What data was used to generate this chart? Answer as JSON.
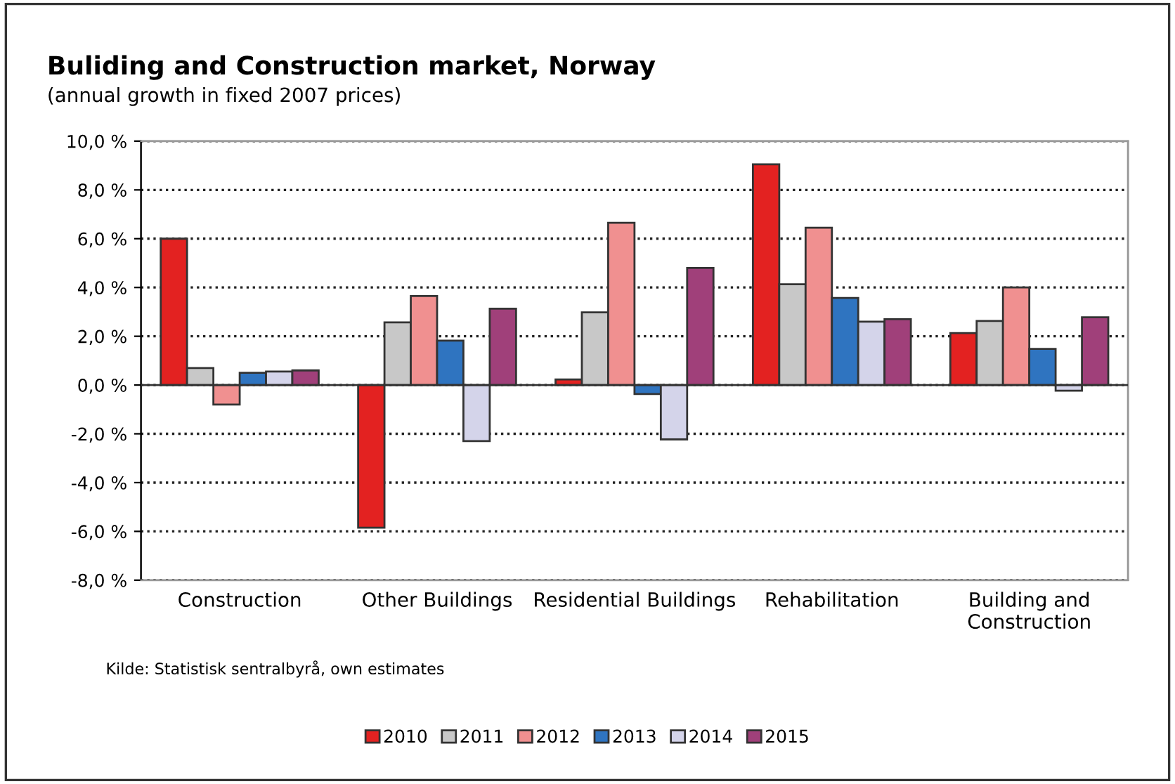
{
  "chart_data": {
    "type": "bar",
    "title": "Buliding and Construction market, Norway",
    "subtitle": "(annual growth in fixed 2007 prices)",
    "categories": [
      "Construction",
      "Other Buildings",
      "Residential Buildings",
      "Rehabilitation",
      "Building and\nConstruction"
    ],
    "series": [
      {
        "name": "2010",
        "color": "#e32221",
        "values": [
          6.0,
          -5.85,
          0.23,
          9.05,
          2.13
        ]
      },
      {
        "name": "2011",
        "color": "#c8c8c8",
        "values": [
          0.7,
          2.57,
          2.98,
          4.13,
          2.63
        ]
      },
      {
        "name": "2012",
        "color": "#f09090",
        "values": [
          -0.8,
          3.65,
          6.65,
          6.45,
          4.0
        ]
      },
      {
        "name": "2013",
        "color": "#2f74c0",
        "values": [
          0.5,
          1.82,
          -0.37,
          3.57,
          1.48
        ]
      },
      {
        "name": "2014",
        "color": "#d4d4ea",
        "values": [
          0.55,
          -2.3,
          -2.23,
          2.6,
          -0.23
        ]
      },
      {
        "name": "2015",
        "color": "#a0407a",
        "values": [
          0.6,
          3.13,
          4.8,
          2.7,
          2.78
        ]
      }
    ],
    "ylim": [
      -8,
      10
    ],
    "yticks": [
      {
        "value": -8,
        "label": "-8,0 %"
      },
      {
        "value": -6,
        "label": "-6,0 %"
      },
      {
        "value": -4,
        "label": "-4,0 %"
      },
      {
        "value": -2,
        "label": "-2,0 %"
      },
      {
        "value": 0,
        "label": "0,0 %"
      },
      {
        "value": 2,
        "label": "2,0 %"
      },
      {
        "value": 4,
        "label": "4,0 %"
      },
      {
        "value": 6,
        "label": "6,0 %"
      },
      {
        "value": 8,
        "label": "8,0 %"
      },
      {
        "value": 10,
        "label": "10,0 %"
      }
    ],
    "grid": "y",
    "line_style": "dotted",
    "legend": "bottom",
    "annotations": [
      "Kilde: Statistisk sentralbyrå, own estimates"
    ]
  }
}
